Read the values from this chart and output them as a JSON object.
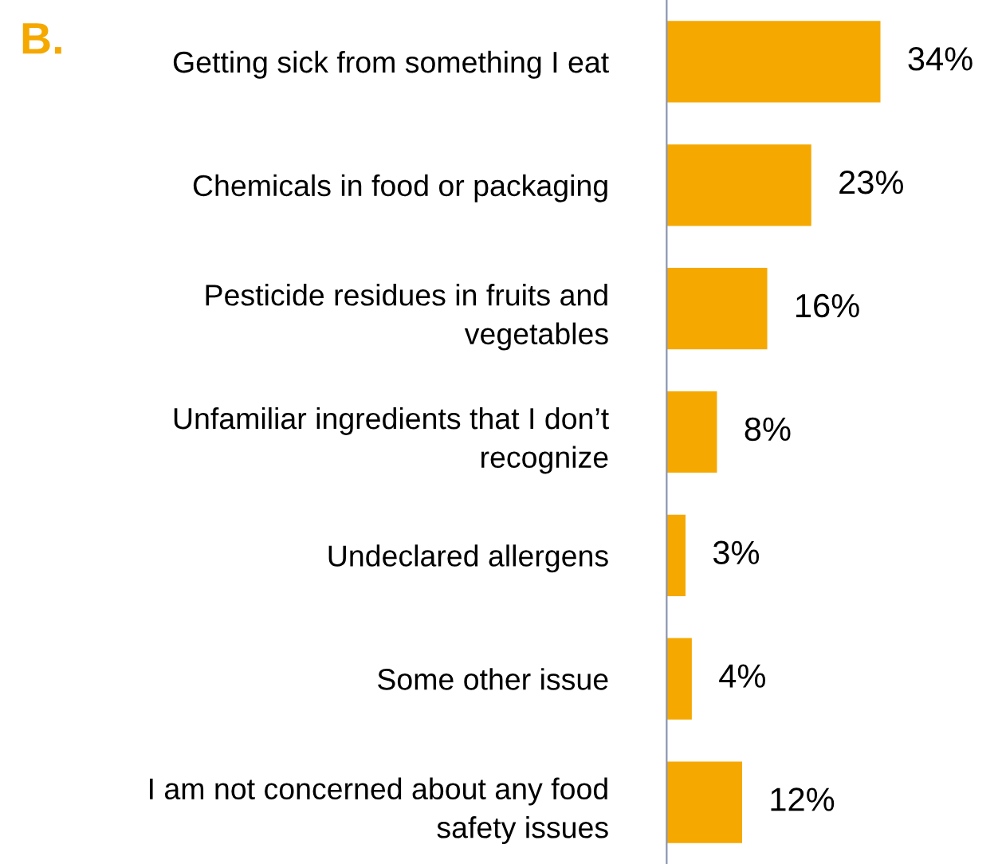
{
  "chart_data": {
    "type": "bar",
    "orientation": "horizontal",
    "title": "B.",
    "categories": [
      "Getting sick from something I eat",
      "Chemicals in food or packaging",
      "Pesticide residues in fruits and\nvegetables",
      "Unfamiliar ingredients that I don’t\nrecognize",
      "Undeclared allergens",
      "Some other issue",
      "I am not concerned about any food\nsafety issues"
    ],
    "values": [
      34,
      23,
      16,
      8,
      3,
      4,
      12
    ],
    "value_labels": [
      "34%",
      "23%",
      "16%",
      "8%",
      "3%",
      "4%",
      "12%"
    ],
    "color": "#f5a800"
  }
}
